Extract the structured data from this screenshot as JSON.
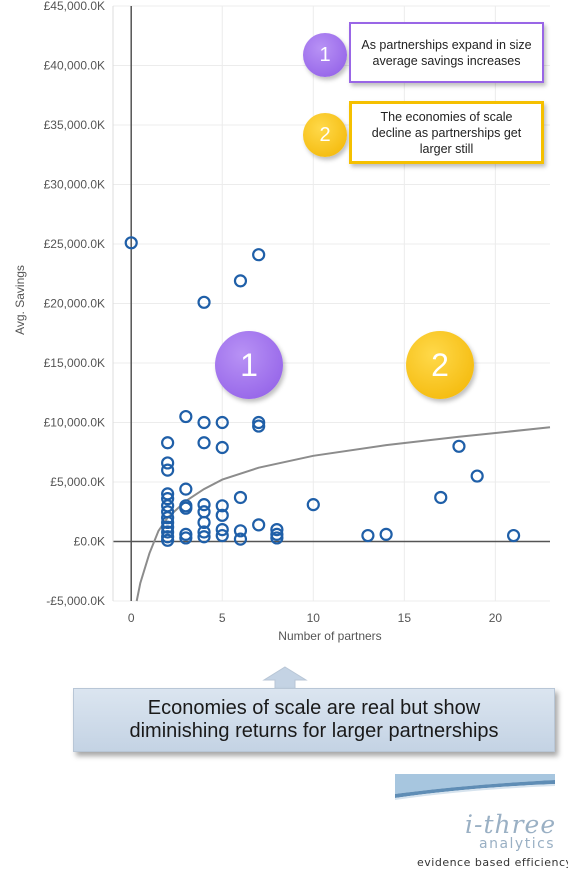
{
  "chart_data": {
    "type": "scatter",
    "xlabel": "Number of partners",
    "ylabel": "Avg. Savings",
    "xlim": [
      -1,
      23
    ],
    "ylim": [
      -5000,
      45000
    ],
    "x_ticks": [
      0,
      5,
      10,
      15,
      20
    ],
    "y_ticks": [
      -5000,
      0,
      5000,
      10000,
      15000,
      20000,
      25000,
      30000,
      35000,
      40000,
      45000
    ],
    "y_tick_labels": [
      "-£5,000.0K",
      "£0.0K",
      "£5,000.0K",
      "£10,000.0K",
      "£15,000.0K",
      "£20,000.0K",
      "£25,000.0K",
      "£30,000.0K",
      "£35,000.0K",
      "£40,000.0K",
      "£45,000.0K"
    ],
    "x_tick_labels": [
      "0",
      "5",
      "10",
      "15",
      "20"
    ],
    "grid": true,
    "points": [
      {
        "x": 0,
        "y": 25100
      },
      {
        "x": 2,
        "y": 8300
      },
      {
        "x": 2,
        "y": 6600
      },
      {
        "x": 2,
        "y": 6000
      },
      {
        "x": 2,
        "y": 4000
      },
      {
        "x": 2,
        "y": 3600
      },
      {
        "x": 2,
        "y": 3000
      },
      {
        "x": 2,
        "y": 2500
      },
      {
        "x": 2,
        "y": 2000
      },
      {
        "x": 2,
        "y": 1600
      },
      {
        "x": 2,
        "y": 1200
      },
      {
        "x": 2,
        "y": 800
      },
      {
        "x": 2,
        "y": 400
      },
      {
        "x": 2,
        "y": 100
      },
      {
        "x": 3,
        "y": 10500
      },
      {
        "x": 3,
        "y": 4400
      },
      {
        "x": 3,
        "y": 3000
      },
      {
        "x": 3,
        "y": 2800
      },
      {
        "x": 3,
        "y": 600
      },
      {
        "x": 3,
        "y": 300
      },
      {
        "x": 4,
        "y": 20100
      },
      {
        "x": 4,
        "y": 10000
      },
      {
        "x": 4,
        "y": 8300
      },
      {
        "x": 4,
        "y": 3100
      },
      {
        "x": 4,
        "y": 2500
      },
      {
        "x": 4,
        "y": 1600
      },
      {
        "x": 4,
        "y": 800
      },
      {
        "x": 4,
        "y": 400
      },
      {
        "x": 5,
        "y": 10000
      },
      {
        "x": 5,
        "y": 7900
      },
      {
        "x": 5,
        "y": 3000
      },
      {
        "x": 5,
        "y": 2200
      },
      {
        "x": 5,
        "y": 1000
      },
      {
        "x": 5,
        "y": 500
      },
      {
        "x": 6,
        "y": 21900
      },
      {
        "x": 6,
        "y": 3700
      },
      {
        "x": 6,
        "y": 900
      },
      {
        "x": 6,
        "y": 200
      },
      {
        "x": 7,
        "y": 24100
      },
      {
        "x": 7,
        "y": 10000
      },
      {
        "x": 7,
        "y": 9700
      },
      {
        "x": 7,
        "y": 1400
      },
      {
        "x": 8,
        "y": 1000
      },
      {
        "x": 8,
        "y": 600
      },
      {
        "x": 8,
        "y": 300
      },
      {
        "x": 10,
        "y": 3100
      },
      {
        "x": 13,
        "y": 500
      },
      {
        "x": 14,
        "y": 600
      },
      {
        "x": 17,
        "y": 3700
      },
      {
        "x": 18,
        "y": 8000
      },
      {
        "x": 19,
        "y": 5500
      },
      {
        "x": 21,
        "y": 500
      }
    ],
    "trend": {
      "type": "logarithmic",
      "curve": [
        {
          "x": 0.3,
          "y": -5000
        },
        {
          "x": 0.5,
          "y": -3500
        },
        {
          "x": 1,
          "y": -1000
        },
        {
          "x": 1.5,
          "y": 900
        },
        {
          "x": 2,
          "y": 2000
        },
        {
          "x": 3,
          "y": 3400
        },
        {
          "x": 4,
          "y": 4400
        },
        {
          "x": 5,
          "y": 5200
        },
        {
          "x": 7,
          "y": 6200
        },
        {
          "x": 10,
          "y": 7200
        },
        {
          "x": 14,
          "y": 8100
        },
        {
          "x": 18,
          "y": 8800
        },
        {
          "x": 23,
          "y": 9600
        }
      ],
      "color": "#8c8c8c"
    },
    "colors": {
      "marker": "#1f5fa8",
      "axis": "#555555",
      "grid": "#ececec"
    }
  },
  "callouts": [
    {
      "number": "1",
      "text": "As partnerships expand in size average savings increases",
      "color": "#9966e6"
    },
    {
      "number": "2",
      "text": "The economies of scale decline as partnerships get larger still",
      "color": "#f5c000"
    }
  ],
  "region_badges": [
    {
      "number": "1",
      "color": "#9966e6"
    },
    {
      "number": "2",
      "color": "#f5c000"
    }
  ],
  "banner": {
    "line1": "Economies of scale are real but show",
    "line2": "diminishing returns for larger partnerships"
  },
  "logo": {
    "name": "i-three",
    "sub": "analytics",
    "tagline": "evidence based efficiency",
    "icon": "swoosh-logo-icon"
  }
}
